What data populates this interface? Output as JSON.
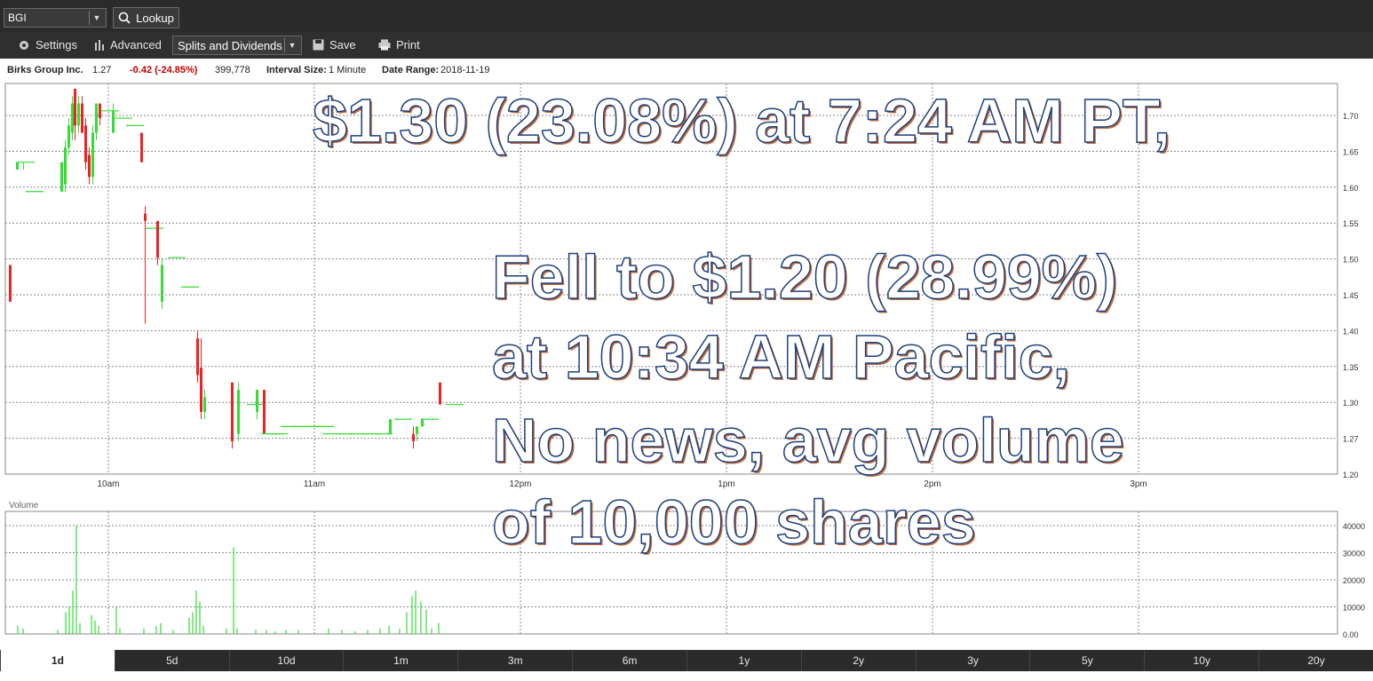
{
  "toolbar": {
    "symbol": "BGI",
    "lookup_label": "Lookup",
    "settings_label": "Settings",
    "advanced_label": "Advanced",
    "splits_label": "Splits and Dividends",
    "save_label": "Save",
    "print_label": "Print"
  },
  "info": {
    "company": "Birks Group Inc.",
    "price": "1.27",
    "change": "-0.42 (-24.85%)",
    "volume": "399,778",
    "interval_label": "Interval Size:",
    "interval_value": "1 Minute",
    "date_label": "Date Range:",
    "date_value": "2018-11-19"
  },
  "overlay": {
    "line1": "$1.30 (23.08%) at 7:24 AM PT,",
    "line2": "Fell to $1.20 (28.99%)",
    "line3": "at 10:34 AM Pacific,",
    "line4": "No news, avg volume",
    "line5": "of 10,000 shares"
  },
  "volume_label": "Volume",
  "colors": {
    "up": "#33dd33",
    "down": "#ee2222",
    "toolbar": "#2b2b2b"
  },
  "periods": [
    "1d",
    "5d",
    "10d",
    "1m",
    "3m",
    "6m",
    "1y",
    "2y",
    "3y",
    "5y",
    "10y",
    "20y"
  ],
  "active_period": "1d",
  "chart_data": {
    "type": "candlestick",
    "x_ticks": [
      "10am",
      "11am",
      "12pm",
      "1pm",
      "2pm",
      "3pm"
    ],
    "price_ticks": [
      "1.70",
      "1.65",
      "1.60",
      "1.55",
      "1.50",
      "1.45",
      "1.40",
      "1.35",
      "1.30",
      "1.27",
      "1.20"
    ],
    "volume_ticks": [
      "40000",
      "30000",
      "20000",
      "10000",
      "0.00"
    ],
    "ylim": [
      1.2,
      1.72
    ],
    "candles": [
      {
        "x": 0,
        "o": 1.48,
        "c": 1.43,
        "h": 1.48,
        "l": 1.43
      },
      {
        "x": 8,
        "o": 1.61,
        "c": 1.62,
        "h": 1.62,
        "l": 1.61
      },
      {
        "x": 15,
        "o": 1.62,
        "c": 1.62,
        "h": 1.62,
        "l": 1.61
      },
      {
        "x": 25,
        "o": 1.58,
        "c": 1.58,
        "h": 1.58,
        "l": 1.58
      },
      {
        "x": 58,
        "o": 1.58,
        "c": 1.62,
        "h": 1.62,
        "l": 1.58
      },
      {
        "x": 62,
        "o": 1.59,
        "c": 1.64,
        "h": 1.65,
        "l": 1.58
      },
      {
        "x": 66,
        "o": 1.64,
        "c": 1.67,
        "h": 1.68,
        "l": 1.63
      },
      {
        "x": 70,
        "o": 1.66,
        "c": 1.7,
        "h": 1.71,
        "l": 1.65
      },
      {
        "x": 73,
        "o": 1.72,
        "c": 1.67,
        "h": 1.72,
        "l": 1.65
      },
      {
        "x": 77,
        "o": 1.67,
        "c": 1.7,
        "h": 1.71,
        "l": 1.66
      },
      {
        "x": 81,
        "o": 1.7,
        "c": 1.66,
        "h": 1.71,
        "l": 1.66
      },
      {
        "x": 85,
        "o": 1.67,
        "c": 1.62,
        "h": 1.68,
        "l": 1.61
      },
      {
        "x": 89,
        "o": 1.63,
        "c": 1.6,
        "h": 1.64,
        "l": 1.59
      },
      {
        "x": 93,
        "o": 1.6,
        "c": 1.66,
        "h": 1.67,
        "l": 1.59
      },
      {
        "x": 97,
        "o": 1.66,
        "c": 1.7,
        "h": 1.7,
        "l": 1.65
      },
      {
        "x": 101,
        "o": 1.7,
        "c": 1.68,
        "h": 1.7,
        "l": 1.67
      },
      {
        "x": 110,
        "o": 1.69,
        "c": 1.69,
        "h": 1.69,
        "l": 1.69
      },
      {
        "x": 116,
        "o": 1.66,
        "c": 1.69,
        "h": 1.7,
        "l": 1.66
      },
      {
        "x": 125,
        "o": 1.68,
        "c": 1.68,
        "h": 1.68,
        "l": 1.68
      },
      {
        "x": 138,
        "o": 1.67,
        "c": 1.67,
        "h": 1.67,
        "l": 1.67
      },
      {
        "x": 148,
        "o": 1.66,
        "c": 1.62,
        "h": 1.66,
        "l": 1.62
      },
      {
        "x": 152,
        "o": 1.55,
        "c": 1.54,
        "h": 1.56,
        "l": 1.4
      },
      {
        "x": 160,
        "o": 1.53,
        "c": 1.53,
        "h": 1.53,
        "l": 1.53
      },
      {
        "x": 166,
        "o": 1.54,
        "c": 1.49,
        "h": 1.54,
        "l": 1.48
      },
      {
        "x": 171,
        "o": 1.43,
        "c": 1.48,
        "h": 1.49,
        "l": 1.42
      },
      {
        "x": 185,
        "o": 1.49,
        "c": 1.49,
        "h": 1.49,
        "l": 1.49
      },
      {
        "x": 200,
        "o": 1.45,
        "c": 1.45,
        "h": 1.45,
        "l": 1.45
      },
      {
        "x": 211,
        "o": 1.38,
        "c": 1.33,
        "h": 1.39,
        "l": 1.32
      },
      {
        "x": 215,
        "o": 1.34,
        "c": 1.28,
        "h": 1.38,
        "l": 1.27
      },
      {
        "x": 219,
        "o": 1.28,
        "c": 1.3,
        "h": 1.31,
        "l": 1.27
      },
      {
        "x": 250,
        "o": 1.32,
        "c": 1.24,
        "h": 1.32,
        "l": 1.23
      },
      {
        "x": 257,
        "o": 1.25,
        "c": 1.31,
        "h": 1.32,
        "l": 1.24
      },
      {
        "x": 274,
        "o": 1.29,
        "c": 1.29,
        "h": 1.29,
        "l": 1.29
      },
      {
        "x": 278,
        "o": 1.28,
        "c": 1.31,
        "h": 1.31,
        "l": 1.27
      },
      {
        "x": 286,
        "o": 1.31,
        "c": 1.25,
        "h": 1.31,
        "l": 1.25
      },
      {
        "x": 290,
        "o": 1.25,
        "c": 1.25,
        "h": 1.25,
        "l": 1.25
      },
      {
        "x": 300,
        "o": 1.25,
        "c": 1.25,
        "h": 1.25,
        "l": 1.25
      },
      {
        "x": 312,
        "o": 1.26,
        "c": 1.26,
        "h": 1.26,
        "l": 1.26
      },
      {
        "x": 326,
        "o": 1.26,
        "c": 1.26,
        "h": 1.26,
        "l": 1.26
      },
      {
        "x": 338,
        "o": 1.26,
        "c": 1.26,
        "h": 1.26,
        "l": 1.26
      },
      {
        "x": 352,
        "o": 1.26,
        "c": 1.26,
        "h": 1.26,
        "l": 1.26
      },
      {
        "x": 360,
        "o": 1.25,
        "c": 1.25,
        "h": 1.25,
        "l": 1.25
      },
      {
        "x": 375,
        "o": 1.25,
        "c": 1.25,
        "h": 1.25,
        "l": 1.25
      },
      {
        "x": 390,
        "o": 1.25,
        "c": 1.25,
        "h": 1.25,
        "l": 1.25
      },
      {
        "x": 404,
        "o": 1.25,
        "c": 1.25,
        "h": 1.25,
        "l": 1.25
      },
      {
        "x": 418,
        "o": 1.25,
        "c": 1.25,
        "h": 1.25,
        "l": 1.25
      },
      {
        "x": 428,
        "o": 1.25,
        "c": 1.27,
        "h": 1.27,
        "l": 1.25
      },
      {
        "x": 440,
        "o": 1.27,
        "c": 1.27,
        "h": 1.27,
        "l": 1.27
      },
      {
        "x": 454,
        "o": 1.25,
        "c": 1.24,
        "h": 1.26,
        "l": 1.23
      },
      {
        "x": 458,
        "o": 1.25,
        "c": 1.26,
        "h": 1.26,
        "l": 1.24
      },
      {
        "x": 464,
        "o": 1.26,
        "c": 1.27,
        "h": 1.27,
        "l": 1.26
      },
      {
        "x": 470,
        "o": 1.27,
        "c": 1.27,
        "h": 1.27,
        "l": 1.27
      },
      {
        "x": 484,
        "o": 1.32,
        "c": 1.29,
        "h": 1.32,
        "l": 1.29
      },
      {
        "x": 498,
        "o": 1.29,
        "c": 1.29,
        "h": 1.29,
        "l": 1.29
      }
    ],
    "volumes": [
      {
        "x": 10,
        "v": 3000
      },
      {
        "x": 16,
        "v": 2000
      },
      {
        "x": 55,
        "v": 1500
      },
      {
        "x": 64,
        "v": 8000
      },
      {
        "x": 68,
        "v": 10000
      },
      {
        "x": 72,
        "v": 16000
      },
      {
        "x": 76,
        "v": 40000
      },
      {
        "x": 80,
        "v": 4000
      },
      {
        "x": 93,
        "v": 7000
      },
      {
        "x": 97,
        "v": 5000
      },
      {
        "x": 101,
        "v": 3000
      },
      {
        "x": 121,
        "v": 10000
      },
      {
        "x": 125,
        "v": 2000
      },
      {
        "x": 152,
        "v": 2000
      },
      {
        "x": 166,
        "v": 3000
      },
      {
        "x": 171,
        "v": 4000
      },
      {
        "x": 185,
        "v": 1500
      },
      {
        "x": 203,
        "v": 6000
      },
      {
        "x": 207,
        "v": 8000
      },
      {
        "x": 211,
        "v": 16000
      },
      {
        "x": 215,
        "v": 12000
      },
      {
        "x": 219,
        "v": 3000
      },
      {
        "x": 245,
        "v": 2000
      },
      {
        "x": 253,
        "v": 32000
      },
      {
        "x": 257,
        "v": 2000
      },
      {
        "x": 278,
        "v": 1500
      },
      {
        "x": 290,
        "v": 1500
      },
      {
        "x": 300,
        "v": 1000
      },
      {
        "x": 312,
        "v": 1500
      },
      {
        "x": 326,
        "v": 1500
      },
      {
        "x": 360,
        "v": 2000
      },
      {
        "x": 375,
        "v": 1500
      },
      {
        "x": 390,
        "v": 1000
      },
      {
        "x": 404,
        "v": 1500
      },
      {
        "x": 418,
        "v": 2000
      },
      {
        "x": 428,
        "v": 3000
      },
      {
        "x": 440,
        "v": 2000
      },
      {
        "x": 448,
        "v": 8000
      },
      {
        "x": 454,
        "v": 14000
      },
      {
        "x": 458,
        "v": 16000
      },
      {
        "x": 464,
        "v": 12000
      },
      {
        "x": 470,
        "v": 9000
      },
      {
        "x": 476,
        "v": 2000
      },
      {
        "x": 484,
        "v": 4000
      }
    ]
  }
}
